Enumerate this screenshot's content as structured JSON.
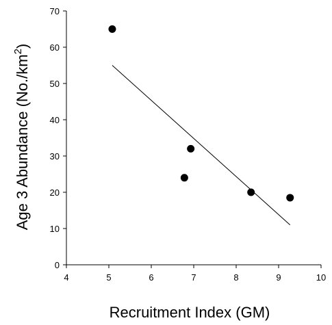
{
  "chart_data": {
    "type": "scatter",
    "title": "",
    "xlabel": "Recruitment Index (GM)",
    "ylabel_main": "Age 3 Abundance (No./km",
    "ylabel_sup": "2",
    "ylabel_close": ")",
    "xlim": [
      4,
      10
    ],
    "ylim": [
      0,
      70
    ],
    "xticks": [
      4,
      5,
      6,
      7,
      8,
      9,
      10
    ],
    "yticks": [
      0,
      10,
      20,
      30,
      40,
      50,
      60,
      70
    ],
    "grid": false,
    "points": [
      {
        "x": 5.08,
        "y": 65
      },
      {
        "x": 6.93,
        "y": 32
      },
      {
        "x": 6.78,
        "y": 24
      },
      {
        "x": 8.35,
        "y": 20
      },
      {
        "x": 9.27,
        "y": 18.5
      }
    ],
    "trendline": [
      {
        "x": 5.08,
        "y": 55
      },
      {
        "x": 9.27,
        "y": 11
      }
    ],
    "colors": {
      "marker": "#000000",
      "line": "#000000"
    }
  }
}
